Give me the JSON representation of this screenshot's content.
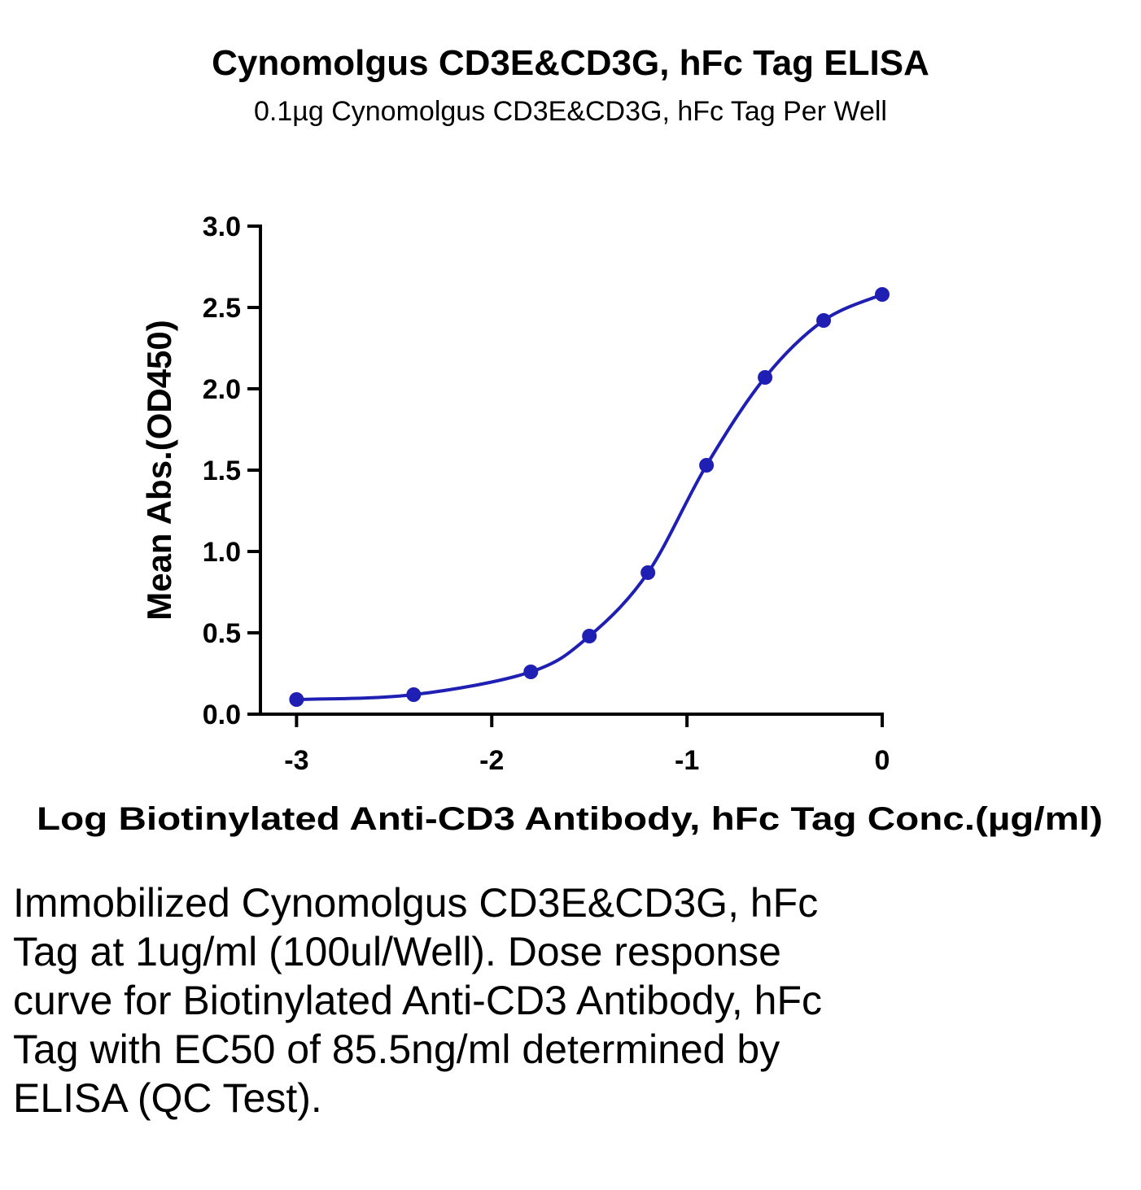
{
  "chart_data": {
    "type": "scatter",
    "title": "Cynomolgus CD3E&CD3G, hFc Tag ELISA",
    "subtitle": "0.1µg Cynomolgus CD3E&CD3G, hFc Tag Per Well",
    "xlabel": "Log Biotinylated Anti-CD3 Antibody, hFc Tag Conc.(µg/ml)",
    "ylabel": "Mean Abs.(OD450)",
    "xlim": [
      -3.2,
      0
    ],
    "ylim": [
      0,
      3.0
    ],
    "x_ticks": [
      -3,
      -2,
      -1,
      0
    ],
    "x_tick_labels": [
      "-3",
      "-2",
      "-1",
      "0"
    ],
    "y_ticks": [
      0,
      0.5,
      1.0,
      1.5,
      2.0,
      2.5,
      3.0
    ],
    "y_tick_labels": [
      "0.0",
      "0.5",
      "1.0",
      "1.5",
      "2.0",
      "2.5",
      "3.0"
    ],
    "grid": false,
    "series": [
      {
        "color": "#1f1fb4",
        "fit": "sigmoidal",
        "x": [
          -3.0,
          -2.4,
          -1.8,
          -1.5,
          -1.2,
          -0.9,
          -0.6,
          -0.3,
          0.0
        ],
        "y": [
          0.09,
          0.12,
          0.26,
          0.48,
          0.87,
          1.53,
          2.07,
          2.42,
          2.58
        ]
      }
    ]
  },
  "caption": "Immobilized Cynomolgus CD3E&CD3G, hFc Tag at 1ug/ml (100ul/Well). Dose response curve for Biotinylated Anti-CD3 Antibody, hFc Tag with EC50 of 85.5ng/ml determined by ELISA (QC Test)."
}
